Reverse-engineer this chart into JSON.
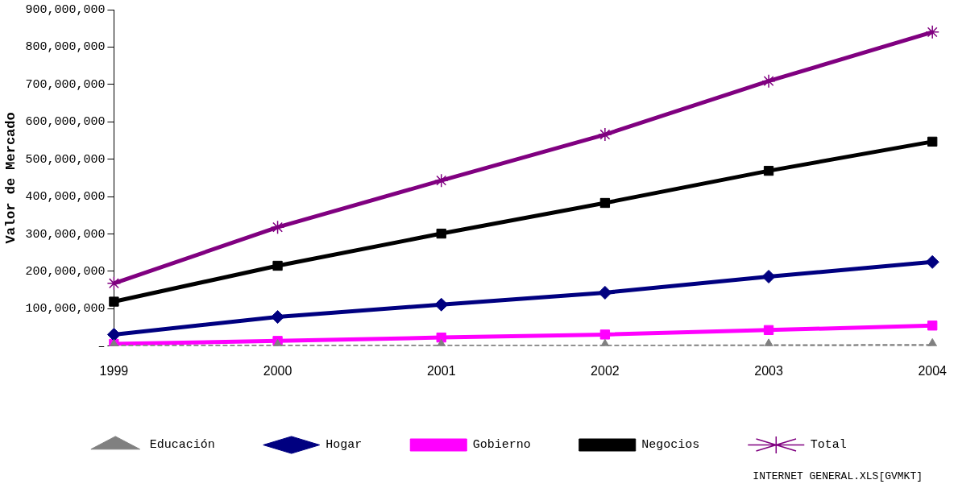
{
  "chart_data": {
    "type": "line",
    "ylabel": "Valor de Mercado",
    "categories": [
      "1999",
      "2000",
      "2001",
      "2002",
      "2003",
      "2004"
    ],
    "series": [
      {
        "name": "Hogar",
        "color": "#000080",
        "marker": "diamond",
        "line_style": "solid",
        "values": [
          31000000,
          78000000,
          111000000,
          143000000,
          186000000,
          225000000
        ]
      },
      {
        "name": "Gobierno",
        "color": "#ff00ff",
        "marker": "square",
        "line_style": "solid",
        "values": [
          6000000,
          14000000,
          23000000,
          31000000,
          43000000,
          55000000
        ]
      },
      {
        "name": "Educación",
        "color": "#808080",
        "marker": "triangle",
        "line_style": "dashed",
        "values": [
          1000000,
          1000000,
          1000000,
          1000000,
          2000000,
          3000000
        ]
      },
      {
        "name": "Negocios",
        "color": "#000000",
        "marker": "square",
        "line_style": "solid",
        "values": [
          119000000,
          215000000,
          301000000,
          383000000,
          469000000,
          547000000
        ]
      },
      {
        "name": "Total",
        "color": "#800080",
        "marker": "cross",
        "line_style": "solid",
        "values": [
          168000000,
          318000000,
          443000000,
          566000000,
          709000000,
          840000000
        ]
      }
    ],
    "ylim": [
      0,
      900000000
    ],
    "yticks": [
      {
        "value": 0,
        "label": "–"
      },
      {
        "value": 100000000,
        "label": "100,000,000"
      },
      {
        "value": 200000000,
        "label": "200,000,000"
      },
      {
        "value": 300000000,
        "label": "300,000,000"
      },
      {
        "value": 400000000,
        "label": "400,000,000"
      },
      {
        "value": 500000000,
        "label": "500,000,000"
      },
      {
        "value": 600000000,
        "label": "600,000,000"
      },
      {
        "value": 700000000,
        "label": "700,000,000"
      },
      {
        "value": 800000000,
        "label": "800,000,000"
      },
      {
        "value": 900000000,
        "label": "900,000,000"
      }
    ],
    "grid": false,
    "legend": "bottom",
    "annotations": [
      "INTERNET GENERAL.XLS[GVMKT]"
    ]
  }
}
